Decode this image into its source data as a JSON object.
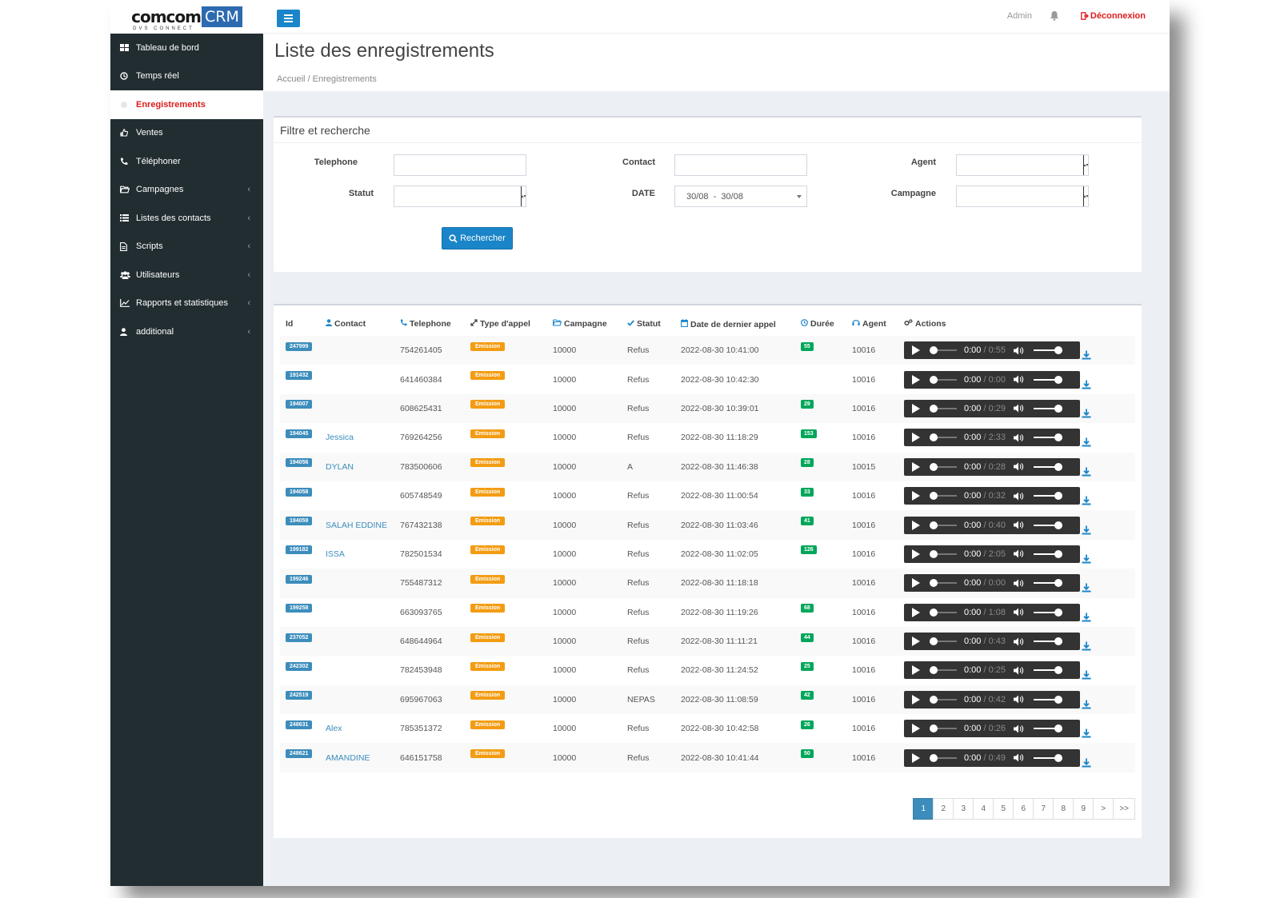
{
  "logo": {
    "main": "comcom",
    "crm": "CRM",
    "sub": "DVS CONNECT"
  },
  "header": {
    "admin": "Admin",
    "logout": "Déconnexion"
  },
  "page": {
    "title": "Liste des enregistrements",
    "breadcrumb": "Accueil / Enregistrements"
  },
  "sidebar": {
    "items": [
      {
        "label": "Tableau de bord",
        "icon": "dashboard-icon",
        "chevron": false,
        "active": false
      },
      {
        "label": "Temps réel",
        "icon": "clock-icon",
        "chevron": false,
        "active": false
      },
      {
        "label": "Enregistrements",
        "icon": "record-icon",
        "chevron": false,
        "active": true
      },
      {
        "label": "Ventes",
        "icon": "thumbs-up-icon",
        "chevron": false,
        "active": false
      },
      {
        "label": "Téléphoner",
        "icon": "phone-icon",
        "chevron": false,
        "active": false
      },
      {
        "label": "Campagnes",
        "icon": "folder-open-icon",
        "chevron": true,
        "active": false
      },
      {
        "label": "Listes des contacts",
        "icon": "list-icon",
        "chevron": true,
        "active": false
      },
      {
        "label": "Scripts",
        "icon": "file-icon",
        "chevron": true,
        "active": false
      },
      {
        "label": "Utilisateurs",
        "icon": "users-icon",
        "chevron": true,
        "active": false
      },
      {
        "label": "Rapports et statistiques",
        "icon": "line-chart-icon",
        "chevron": true,
        "active": false
      },
      {
        "label": "additional",
        "icon": "user-icon",
        "chevron": true,
        "active": false
      }
    ]
  },
  "filter": {
    "title": "Filtre et recherche",
    "telephone_label": "Telephone",
    "contact_label": "Contact",
    "agent_label": "Agent",
    "statut_label": "Statut",
    "date_label": "DATE",
    "date_value": "30/08  -  30/08",
    "campagne_label": "Campagne",
    "search_button": "Rechercher"
  },
  "table": {
    "headers": {
      "id": "Id",
      "contact": "Contact",
      "telephone": "Telephone",
      "type": "Type d'appel",
      "campagne": "Campagne",
      "statut": "Statut",
      "date": "Date de dernier appel",
      "duree": "Durée",
      "agent": "Agent",
      "actions": "Actions"
    },
    "rows": [
      {
        "id": "247999",
        "contact": "",
        "telephone": "754261405",
        "type": "Emission",
        "campagne": "10000",
        "statut": "Refus",
        "date": "2022-08-30 10:41:00",
        "duree": "55",
        "agent": "10016",
        "current": "0:00",
        "total": "0:55"
      },
      {
        "id": "191432",
        "contact": "",
        "telephone": "641460384",
        "type": "Emission",
        "campagne": "10000",
        "statut": "Refus",
        "date": "2022-08-30 10:42:30",
        "duree": "",
        "agent": "10016",
        "current": "0:00",
        "total": "0:00"
      },
      {
        "id": "194007",
        "contact": "",
        "telephone": "608625431",
        "type": "Emission",
        "campagne": "10000",
        "statut": "Refus",
        "date": "2022-08-30 10:39:01",
        "duree": "29",
        "agent": "10016",
        "current": "0:00",
        "total": "0:29"
      },
      {
        "id": "194045",
        "contact": "Jessica",
        "telephone": "769264256",
        "type": "Emission",
        "campagne": "10000",
        "statut": "Refus",
        "date": "2022-08-30 11:18:29",
        "duree": "153",
        "agent": "10016",
        "current": "0:00",
        "total": "2:33"
      },
      {
        "id": "194056",
        "contact": "DYLAN",
        "telephone": "783500606",
        "type": "Emission",
        "campagne": "10000",
        "statut": "A",
        "date": "2022-08-30 11:46:38",
        "duree": "28",
        "agent": "10015",
        "current": "0:00",
        "total": "0:28"
      },
      {
        "id": "194058",
        "contact": "",
        "telephone": "605748549",
        "type": "Emission",
        "campagne": "10000",
        "statut": "Refus",
        "date": "2022-08-30 11:00:54",
        "duree": "33",
        "agent": "10016",
        "current": "0:00",
        "total": "0:32"
      },
      {
        "id": "194059",
        "contact": "SALAH EDDINE",
        "telephone": "767432138",
        "type": "Emission",
        "campagne": "10000",
        "statut": "Refus",
        "date": "2022-08-30 11:03:46",
        "duree": "41",
        "agent": "10016",
        "current": "0:00",
        "total": "0:40"
      },
      {
        "id": "199182",
        "contact": "ISSA",
        "telephone": "782501534",
        "type": "Emission",
        "campagne": "10000",
        "statut": "Refus",
        "date": "2022-08-30 11:02:05",
        "duree": "126",
        "agent": "10016",
        "current": "0:00",
        "total": "2:05"
      },
      {
        "id": "199246",
        "contact": "",
        "telephone": "755487312",
        "type": "Emission",
        "campagne": "10000",
        "statut": "Refus",
        "date": "2022-08-30 11:18:18",
        "duree": "",
        "agent": "10016",
        "current": "0:00",
        "total": "0:00"
      },
      {
        "id": "199258",
        "contact": "",
        "telephone": "663093765",
        "type": "Emission",
        "campagne": "10000",
        "statut": "Refus",
        "date": "2022-08-30 11:19:26",
        "duree": "68",
        "agent": "10016",
        "current": "0:00",
        "total": "1:08"
      },
      {
        "id": "237052",
        "contact": "",
        "telephone": "648644964",
        "type": "Emission",
        "campagne": "10000",
        "statut": "Refus",
        "date": "2022-08-30 11:11:21",
        "duree": "44",
        "agent": "10016",
        "current": "0:00",
        "total": "0:43"
      },
      {
        "id": "242302",
        "contact": "",
        "telephone": "782453948",
        "type": "Emission",
        "campagne": "10000",
        "statut": "Refus",
        "date": "2022-08-30 11:24:52",
        "duree": "25",
        "agent": "10016",
        "current": "0:00",
        "total": "0:25"
      },
      {
        "id": "242519",
        "contact": "",
        "telephone": "695967063",
        "type": "Emission",
        "campagne": "10000",
        "statut": "NEPAS",
        "date": "2022-08-30 11:08:59",
        "duree": "42",
        "agent": "10016",
        "current": "0:00",
        "total": "0:42"
      },
      {
        "id": "248631",
        "contact": "Alex",
        "telephone": "785351372",
        "type": "Emission",
        "campagne": "10000",
        "statut": "Refus",
        "date": "2022-08-30 10:42:58",
        "duree": "26",
        "agent": "10016",
        "current": "0:00",
        "total": "0:26"
      },
      {
        "id": "248621",
        "contact": "AMANDINE",
        "telephone": "646151758",
        "type": "Emission",
        "campagne": "10000",
        "statut": "Refus",
        "date": "2022-08-30 10:41:44",
        "duree": "50",
        "agent": "10016",
        "current": "0:00",
        "total": "0:49"
      }
    ]
  },
  "pagination": {
    "pages": [
      "1",
      "2",
      "3",
      "4",
      "5",
      "6",
      "7",
      "8",
      "9",
      ">",
      ">>"
    ],
    "active": "1"
  },
  "colors": {
    "primary": "#1a85c8",
    "sidebar": "#222d32",
    "danger": "#dd1c1c",
    "warning": "#f39c12",
    "success": "#00a65a",
    "info": "#3c8dbc"
  }
}
